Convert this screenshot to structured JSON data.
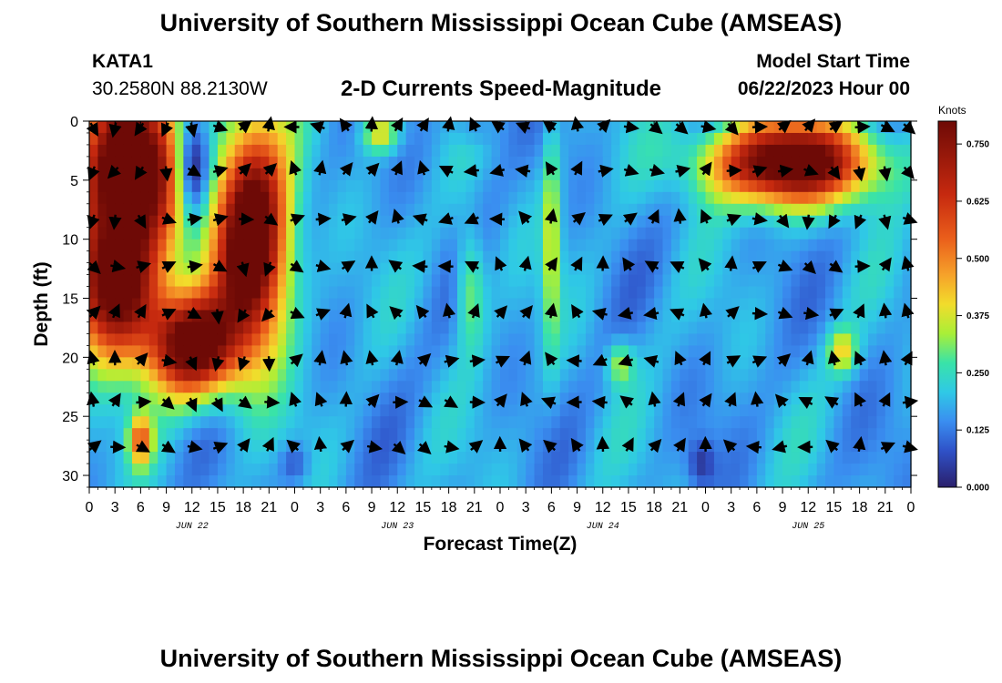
{
  "header": {
    "title": "University of Southern Mississippi Ocean Cube (AMSEAS)",
    "station": "KATA1",
    "coords": "30.2580N  88.2130W",
    "plot_title": "2-D Currents Speed-Magnitude",
    "model_label": "Model Start Time",
    "model_date": "06/22/2023 Hour 00"
  },
  "footer": {
    "title": "University of Southern Mississippi Ocean Cube (AMSEAS)"
  },
  "chart_data": {
    "type": "heatmap",
    "title": "2-D Currents Speed-Magnitude",
    "xlabel": "Forecast Time(Z)",
    "ylabel": "Depth (ft)",
    "x_range_hours": [
      0,
      96
    ],
    "y_range_ft": [
      0,
      31
    ],
    "x_ticks": [
      {
        "hour": 0,
        "label": "0"
      },
      {
        "hour": 3,
        "label": "3"
      },
      {
        "hour": 6,
        "label": "6"
      },
      {
        "hour": 9,
        "label": "9"
      },
      {
        "hour": 12,
        "label": "12"
      },
      {
        "hour": 15,
        "label": "15"
      },
      {
        "hour": 18,
        "label": "18"
      },
      {
        "hour": 21,
        "label": "21"
      },
      {
        "hour": 24,
        "label": "0"
      },
      {
        "hour": 27,
        "label": "3"
      },
      {
        "hour": 30,
        "label": "6"
      },
      {
        "hour": 33,
        "label": "9"
      },
      {
        "hour": 36,
        "label": "12"
      },
      {
        "hour": 39,
        "label": "15"
      },
      {
        "hour": 42,
        "label": "18"
      },
      {
        "hour": 45,
        "label": "21"
      },
      {
        "hour": 48,
        "label": "0"
      },
      {
        "hour": 51,
        "label": "3"
      },
      {
        "hour": 54,
        "label": "6"
      },
      {
        "hour": 57,
        "label": "9"
      },
      {
        "hour": 60,
        "label": "12"
      },
      {
        "hour": 63,
        "label": "15"
      },
      {
        "hour": 66,
        "label": "18"
      },
      {
        "hour": 69,
        "label": "21"
      },
      {
        "hour": 72,
        "label": "0"
      },
      {
        "hour": 75,
        "label": "3"
      },
      {
        "hour": 78,
        "label": "6"
      },
      {
        "hour": 81,
        "label": "9"
      },
      {
        "hour": 84,
        "label": "12"
      },
      {
        "hour": 87,
        "label": "15"
      },
      {
        "hour": 90,
        "label": "18"
      },
      {
        "hour": 93,
        "label": "21"
      },
      {
        "hour": 96,
        "label": "0"
      }
    ],
    "date_labels": [
      {
        "hour": 12,
        "label": "JUN 22"
      },
      {
        "hour": 36,
        "label": "JUN 23"
      },
      {
        "hour": 60,
        "label": "JUN 24"
      },
      {
        "hour": 84,
        "label": "JUN 25"
      }
    ],
    "y_ticks": [
      0,
      5,
      10,
      15,
      20,
      25,
      30
    ],
    "colorbar": {
      "label": "Knots",
      "range": [
        0,
        0.8
      ],
      "ticks": [
        "0.000",
        "0.125",
        "0.250",
        "0.375",
        "0.500",
        "0.625",
        "0.750"
      ]
    },
    "vector_times_hours": [
      0,
      3,
      6,
      9,
      12,
      15,
      18,
      21,
      24,
      27,
      30,
      33,
      36,
      39,
      42,
      45,
      48,
      51,
      54,
      57,
      60,
      63,
      66,
      69,
      72,
      75,
      78,
      81,
      84,
      87,
      90,
      93,
      96
    ],
    "vector_depths_ft": [
      0.5,
      4.2,
      8.3,
      12.3,
      16.3,
      20.3,
      23.8,
      27.6
    ],
    "speed_features": [
      {
        "t_center": 5,
        "t_width": 7,
        "d_center": 4,
        "d_width": 8,
        "knots": 0.8
      },
      {
        "t_center": 3,
        "t_width": 6,
        "d_center": 14,
        "d_width": 7,
        "knots": 0.7
      },
      {
        "t_center": 19,
        "t_width": 5,
        "d_center": 10,
        "d_width": 11,
        "knots": 0.8
      },
      {
        "t_center": 12,
        "t_width": 6,
        "d_center": 19,
        "d_width": 5,
        "knots": 0.7
      },
      {
        "t_center": 6,
        "t_width": 1.6,
        "d_center": 27,
        "d_width": 2.5,
        "knots": 0.35
      },
      {
        "t_center": 12,
        "t_width": 2.5,
        "d_center": 4,
        "d_width": 5,
        "knots": -0.35
      },
      {
        "t_center": 34,
        "t_width": 2.5,
        "d_center": 1,
        "d_width": 2,
        "knots": 0.25
      },
      {
        "t_center": 44.5,
        "t_width": 2,
        "d_center": 14,
        "d_width": 6,
        "knots": 0.18
      },
      {
        "t_center": 54,
        "t_width": 1.2,
        "d_center": 10,
        "d_width": 11,
        "knots": 0.2
      },
      {
        "t_center": 62,
        "t_width": 1.8,
        "d_center": 20.5,
        "d_width": 2.2,
        "knots": 0.18
      },
      {
        "t_center": 82,
        "t_width": 11,
        "d_center": 3.5,
        "d_width": 4,
        "knots": 0.75
      },
      {
        "t_center": 88,
        "t_width": 2,
        "d_center": 19.5,
        "d_width": 2.2,
        "knots": 0.22
      },
      {
        "t_center": 71.5,
        "t_width": 1.8,
        "d_center": 29,
        "d_width": 2.3,
        "knots": -0.12
      },
      {
        "t_center": 24,
        "t_width": 2,
        "d_center": 29,
        "d_width": 2,
        "knots": -0.1
      },
      {
        "t_center": 45,
        "t_width": 3,
        "d_center": 0.5,
        "d_width": 2,
        "knots": -0.08
      }
    ],
    "base_speed_knots": 0.17
  }
}
